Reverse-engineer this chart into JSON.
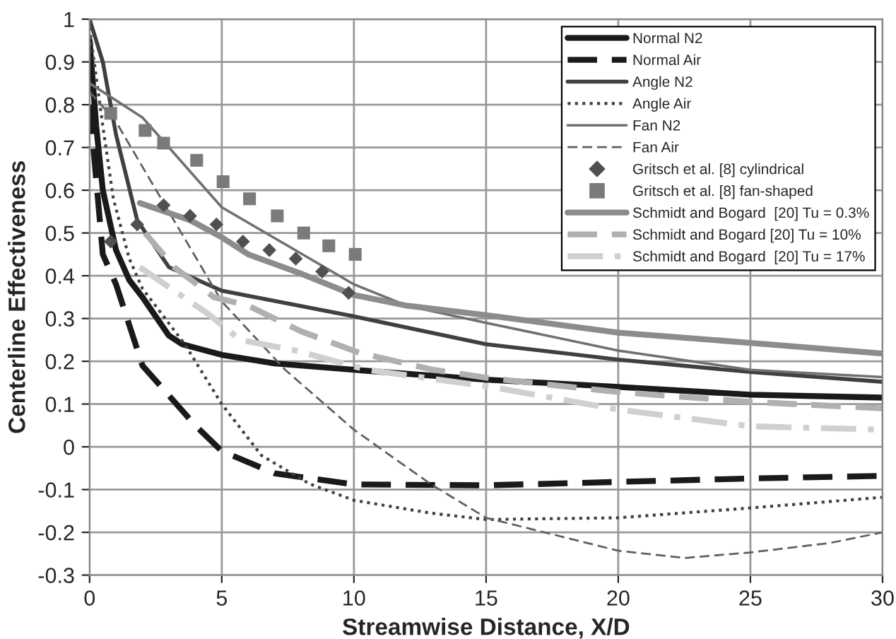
{
  "chart_data": {
    "type": "line",
    "xlabel": "Streamwise Distance, X/D",
    "ylabel": "Centerline Effectiveness",
    "xlim": [
      0,
      30
    ],
    "xticks": [
      0,
      5,
      10,
      15,
      20,
      25,
      30
    ],
    "ylim": [
      -0.3,
      1
    ],
    "yticks": [
      -0.3,
      -0.2,
      -0.1,
      0,
      0.1,
      0.2,
      0.3,
      0.4,
      0.5,
      0.6,
      0.7,
      0.8,
      0.9,
      1
    ],
    "grid": true,
    "legend": "top right",
    "series": [
      {
        "name": "Normal N2",
        "color": "#1a1a1a",
        "line_style": "solid",
        "x": [
          0,
          0.25,
          0.5,
          1,
          1.5,
          2,
          3,
          3.5,
          5,
          7,
          10,
          15,
          20,
          25,
          30
        ],
        "values": [
          0.95,
          0.75,
          0.6,
          0.46,
          0.39,
          0.35,
          0.26,
          0.24,
          0.215,
          0.195,
          0.18,
          0.157,
          0.14,
          0.122,
          0.115
        ]
      },
      {
        "name": "Normal Air",
        "color": "#1a1a1a",
        "line_style": "dashed",
        "x": [
          0,
          0.5,
          1,
          2,
          3,
          4,
          5,
          7,
          10,
          15,
          17,
          20,
          25,
          30
        ],
        "values": [
          0.8,
          0.45,
          0.38,
          0.19,
          0.12,
          0.05,
          -0.01,
          -0.062,
          -0.088,
          -0.09,
          -0.087,
          -0.082,
          -0.074,
          -0.068
        ]
      },
      {
        "name": "Angle N2",
        "color": "#404040",
        "line_style": "solid",
        "x": [
          0,
          0.5,
          1,
          1.8,
          3,
          5,
          10,
          15,
          20,
          25,
          30
        ],
        "values": [
          1.0,
          0.9,
          0.73,
          0.53,
          0.42,
          0.365,
          0.305,
          0.24,
          0.204,
          0.175,
          0.152
        ]
      },
      {
        "name": "Angle Air",
        "color": "#404040",
        "line_style": "dotted",
        "x": [
          0,
          0.5,
          0.9,
          1.5,
          2,
          3.6,
          5,
          6.5,
          8.3,
          10,
          12.9,
          15,
          20,
          25,
          30
        ],
        "values": [
          0.98,
          0.75,
          0.58,
          0.44,
          0.37,
          0.24,
          0.1,
          -0.02,
          -0.086,
          -0.125,
          -0.155,
          -0.17,
          -0.166,
          -0.143,
          -0.118
        ]
      },
      {
        "name": "Fan N2",
        "color": "#707070",
        "line_style": "solid",
        "x": [
          0,
          2,
          5,
          7.5,
          10,
          12,
          15,
          20,
          25,
          30
        ],
        "values": [
          0.85,
          0.77,
          0.56,
          0.47,
          0.38,
          0.33,
          0.29,
          0.225,
          0.18,
          0.163
        ]
      },
      {
        "name": "Fan Air",
        "color": "#606060",
        "line_style": "dashed",
        "x": [
          0,
          1,
          2.9,
          5,
          7.4,
          10,
          12.9,
          15,
          20,
          22.5,
          25,
          28,
          30
        ],
        "values": [
          0.83,
          0.76,
          0.56,
          0.34,
          0.18,
          0.04,
          -0.087,
          -0.166,
          -0.243,
          -0.26,
          -0.247,
          -0.225,
          -0.2
        ]
      },
      {
        "name": "Gritsch et al. [8] cylindrical",
        "type": "scatter",
        "marker": "diamond",
        "color": "#505050",
        "x": [
          0.8,
          1.8,
          2.8,
          3.8,
          4.8,
          5.8,
          6.8,
          7.8,
          8.8,
          9.8
        ],
        "values": [
          0.48,
          0.52,
          0.565,
          0.54,
          0.52,
          0.48,
          0.46,
          0.44,
          0.41,
          0.36
        ]
      },
      {
        "name": "Gritsch et al. [8] fan-shaped",
        "type": "scatter",
        "marker": "square",
        "color": "#7a7a7a",
        "x": [
          0.8,
          2.1,
          2.8,
          4.05,
          5.05,
          6.05,
          7.1,
          8.1,
          9.05,
          10.05
        ],
        "values": [
          0.78,
          0.74,
          0.71,
          0.67,
          0.62,
          0.58,
          0.54,
          0.5,
          0.47,
          0.45
        ]
      },
      {
        "name": "Schmidt and Bogard  [20] Tu = 0.3%",
        "color": "#8c8c8c",
        "line_style": "solid",
        "x": [
          1.9,
          3.8,
          5,
          6,
          8,
          10,
          12,
          15,
          20,
          25,
          30
        ],
        "values": [
          0.57,
          0.53,
          0.49,
          0.45,
          0.405,
          0.355,
          0.33,
          0.308,
          0.267,
          0.243,
          0.218
        ]
      },
      {
        "name": "Schmidt and Bogard [20] Tu = 10%",
        "color": "#b0b0b0",
        "line_style": "dashed",
        "x": [
          2.1,
          3.2,
          4.7,
          6,
          8,
          10.2,
          13,
          15.2,
          20,
          25,
          30
        ],
        "values": [
          0.5,
          0.42,
          0.35,
          0.33,
          0.27,
          0.22,
          0.18,
          0.16,
          0.128,
          0.105,
          0.09
        ]
      },
      {
        "name": "Schmidt and Bogard  [20] Tu = 17%",
        "color": "#d0d0d0",
        "line_style": "dashdot",
        "x": [
          1.9,
          3.2,
          4.5,
          5.7,
          7.8,
          10.5,
          15.2,
          20,
          25,
          30
        ],
        "values": [
          0.42,
          0.365,
          0.31,
          0.25,
          0.225,
          0.18,
          0.14,
          0.087,
          0.048,
          0.04
        ]
      }
    ]
  }
}
